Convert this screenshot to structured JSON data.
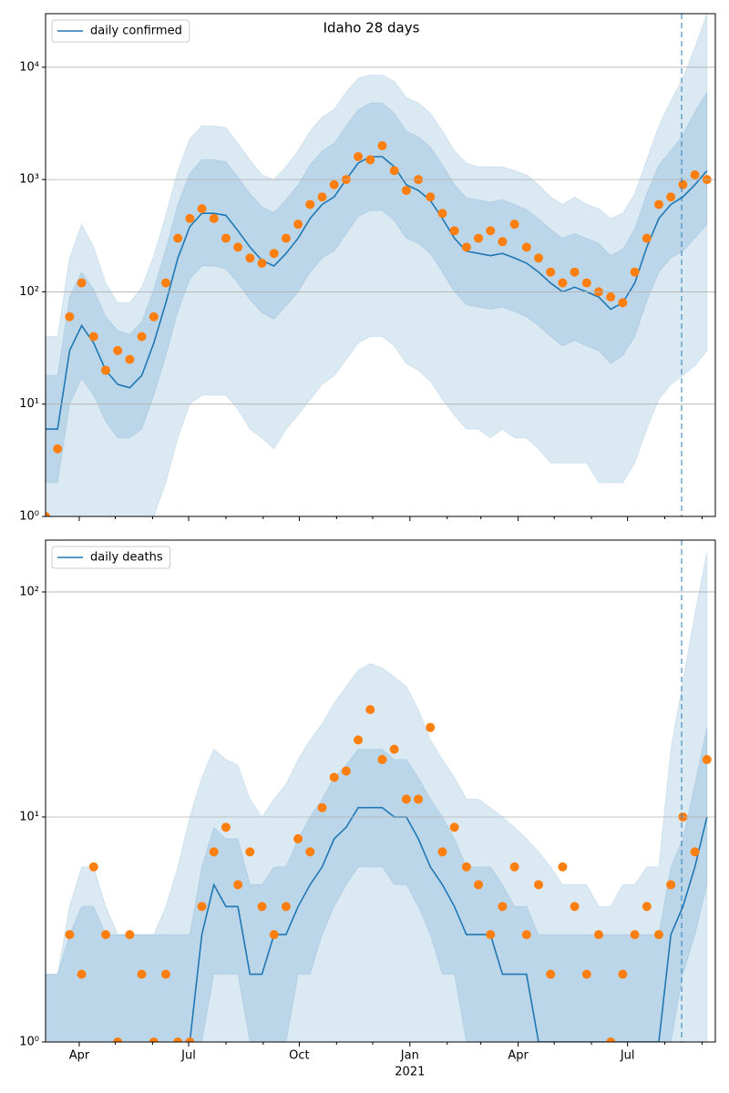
{
  "chart_data": [
    {
      "type": "line",
      "title": "Idaho 28 days",
      "x": [
        0,
        10,
        20,
        30,
        40,
        50,
        60,
        70,
        80,
        90,
        100,
        110,
        120,
        130,
        140,
        150,
        160,
        170,
        180,
        190,
        200,
        210,
        220,
        230,
        240,
        250,
        260,
        270,
        280,
        290,
        300,
        310,
        320,
        330,
        340,
        350,
        360,
        370,
        380,
        390,
        400,
        410,
        420,
        430,
        440,
        450,
        460,
        470,
        480,
        490,
        500,
        510,
        520,
        530,
        540,
        550
      ],
      "xlim": [
        0,
        557
      ],
      "xticks": [
        28,
        119,
        211,
        303,
        393,
        484
      ],
      "xminorticks": [
        58,
        89,
        150,
        181,
        242,
        272,
        334,
        362,
        423,
        454,
        515,
        546
      ],
      "log_y": true,
      "ylim": [
        1,
        30000
      ],
      "yticks": [
        {
          "value": 1,
          "label": "10⁰"
        },
        {
          "value": 10,
          "label": "10¹"
        },
        {
          "value": 100,
          "label": "10²"
        },
        {
          "value": 1000,
          "label": "10³"
        },
        {
          "value": 10000,
          "label": "10⁴"
        }
      ],
      "grid": true,
      "legend": "upper left",
      "vline": 529,
      "series": [
        {
          "name": "daily confirmed",
          "color": "#1f77b4",
          "values": [
            6,
            6,
            30,
            50,
            35,
            20,
            15,
            14,
            18,
            35,
            80,
            200,
            380,
            500,
            500,
            480,
            350,
            250,
            190,
            170,
            220,
            300,
            450,
            600,
            700,
            1000,
            1400,
            1600,
            1600,
            1300,
            900,
            800,
            650,
            450,
            300,
            230,
            220,
            210,
            220,
            200,
            180,
            150,
            120,
            100,
            110,
            100,
            90,
            70,
            80,
            120,
            250,
            450,
            600,
            700,
            900,
            1200
          ]
        }
      ],
      "observed": {
        "color": "#ff7f0e",
        "values": [
          1,
          4,
          60,
          120,
          40,
          20,
          30,
          25,
          40,
          60,
          120,
          300,
          450,
          550,
          450,
          300,
          250,
          200,
          180,
          220,
          300,
          400,
          600,
          700,
          900,
          1000,
          1600,
          1500,
          2000,
          1200,
          800,
          1000,
          700,
          500,
          350,
          250,
          300,
          350,
          280,
          400,
          250,
          200,
          150,
          120,
          150,
          120,
          100,
          90,
          80,
          150,
          300,
          600,
          700,
          900,
          1100,
          1000
        ]
      },
      "bands": [
        {
          "color": "#1f77b4",
          "lower": [
            1,
            1,
            1,
            1,
            1,
            1,
            1,
            1,
            1,
            1,
            2,
            5,
            10,
            12,
            12,
            12,
            9,
            6,
            5,
            4,
            6,
            8,
            11,
            15,
            18,
            25,
            35,
            40,
            40,
            33,
            23,
            20,
            16,
            11,
            8,
            6,
            6,
            5,
            6,
            5,
            5,
            4,
            3,
            3,
            3,
            3,
            2,
            2,
            2,
            3,
            6,
            11,
            15,
            18,
            22,
            30
          ],
          "upper": [
            40,
            40,
            200,
            400,
            250,
            120,
            80,
            80,
            110,
            210,
            480,
            1200,
            2300,
            3000,
            3000,
            2900,
            2100,
            1500,
            1100,
            1000,
            1300,
            1800,
            2700,
            3600,
            4200,
            6000,
            8000,
            8500,
            8500,
            7500,
            5400,
            4800,
            3900,
            2700,
            1800,
            1400,
            1300,
            1300,
            1300,
            1200,
            1100,
            900,
            700,
            600,
            700,
            600,
            550,
            450,
            500,
            750,
            1500,
            3000,
            5000,
            8000,
            15000,
            30000
          ]
        },
        {
          "color": "#1f77b4",
          "lower": [
            2,
            2,
            10,
            17,
            12,
            7,
            5,
            5,
            6,
            12,
            27,
            67,
            130,
            170,
            170,
            160,
            120,
            85,
            65,
            57,
            75,
            100,
            150,
            200,
            230,
            330,
            470,
            530,
            530,
            430,
            300,
            270,
            220,
            150,
            100,
            77,
            73,
            70,
            73,
            67,
            60,
            50,
            40,
            33,
            37,
            33,
            30,
            23,
            27,
            40,
            83,
            150,
            200,
            230,
            300,
            400
          ],
          "upper": [
            18,
            18,
            90,
            150,
            105,
            60,
            45,
            42,
            54,
            105,
            240,
            600,
            1140,
            1500,
            1500,
            1440,
            1050,
            750,
            570,
            510,
            660,
            900,
            1350,
            1800,
            2100,
            3000,
            4200,
            4800,
            4800,
            3900,
            2700,
            2400,
            1950,
            1350,
            900,
            690,
            660,
            630,
            660,
            600,
            540,
            450,
            360,
            300,
            330,
            300,
            270,
            210,
            240,
            360,
            750,
            1350,
            1800,
            2500,
            4000,
            6000
          ]
        }
      ]
    },
    {
      "type": "line",
      "x": [
        0,
        10,
        20,
        30,
        40,
        50,
        60,
        70,
        80,
        90,
        100,
        110,
        120,
        130,
        140,
        150,
        160,
        170,
        180,
        190,
        200,
        210,
        220,
        230,
        240,
        250,
        260,
        270,
        280,
        290,
        300,
        310,
        320,
        330,
        340,
        350,
        360,
        370,
        380,
        390,
        400,
        410,
        420,
        430,
        440,
        450,
        460,
        470,
        480,
        490,
        500,
        510,
        520,
        530,
        540,
        550
      ],
      "xlim": [
        0,
        557
      ],
      "xticks": [
        {
          "value": 28,
          "label": "Apr"
        },
        {
          "value": 119,
          "label": "Jul"
        },
        {
          "value": 211,
          "label": "Oct"
        },
        {
          "value": 303,
          "label": "Jan"
        },
        {
          "value": 393,
          "label": "Apr"
        },
        {
          "value": 484,
          "label": "Jul"
        }
      ],
      "xminorticks": [
        58,
        89,
        150,
        181,
        242,
        272,
        334,
        362,
        423,
        454,
        515,
        546
      ],
      "year_label": {
        "value": 303,
        "label": "2021"
      },
      "log_y": true,
      "ylim": [
        1,
        170
      ],
      "yticks": [
        {
          "value": 1,
          "label": "10⁰"
        },
        {
          "value": 10,
          "label": "10¹"
        },
        {
          "value": 100,
          "label": "10²"
        }
      ],
      "grid": true,
      "legend": "upper left",
      "vline": 529,
      "series": [
        {
          "name": "daily deaths",
          "color": "#1f77b4",
          "values": [
            null,
            null,
            null,
            null,
            null,
            null,
            null,
            null,
            null,
            null,
            null,
            null,
            1,
            3,
            5,
            4,
            4,
            2,
            2,
            3,
            3,
            4,
            5,
            6,
            8,
            9,
            11,
            11,
            11,
            10,
            10,
            8,
            6,
            5,
            4,
            3,
            3,
            3,
            2,
            2,
            2,
            1,
            1,
            1,
            1,
            1,
            1,
            1,
            1,
            1,
            1,
            1,
            3,
            4,
            6,
            10
          ]
        }
      ],
      "observed": {
        "color": "#ff7f0e",
        "values": [
          null,
          null,
          3,
          2,
          6,
          3,
          1,
          3,
          2,
          1,
          2,
          1,
          1,
          4,
          7,
          9,
          5,
          7,
          4,
          3,
          4,
          8,
          7,
          11,
          15,
          16,
          22,
          30,
          18,
          20,
          12,
          12,
          25,
          7,
          9,
          6,
          5,
          3,
          4,
          6,
          3,
          5,
          2,
          6,
          4,
          2,
          3,
          1,
          2,
          3,
          4,
          3,
          5,
          10,
          7,
          18
        ]
      },
      "bands": [
        {
          "color": "#1f77b4",
          "lower": [
            1,
            1,
            1,
            1,
            1,
            1,
            1,
            1,
            1,
            1,
            1,
            1,
            1,
            1,
            1,
            1,
            1,
            1,
            1,
            1,
            1,
            1,
            1,
            1,
            1,
            1,
            1,
            1,
            1,
            1,
            1,
            1,
            1,
            1,
            1,
            1,
            1,
            1,
            1,
            1,
            1,
            1,
            1,
            1,
            1,
            1,
            1,
            1,
            1,
            1,
            1,
            1,
            1,
            1,
            1,
            1
          ],
          "upper": [
            2,
            2,
            4,
            6,
            6,
            4,
            3,
            3,
            3,
            3,
            4,
            6,
            10,
            15,
            20,
            18,
            17,
            12,
            10,
            12,
            14,
            18,
            22,
            26,
            32,
            38,
            45,
            48,
            46,
            42,
            38,
            30,
            22,
            18,
            15,
            12,
            12,
            11,
            10,
            9,
            8,
            7,
            6,
            5,
            5,
            5,
            4,
            4,
            5,
            5,
            6,
            6,
            20,
            40,
            80,
            150
          ]
        },
        {
          "color": "#1f77b4",
          "lower": [
            1,
            1,
            1,
            1,
            1,
            1,
            1,
            1,
            1,
            1,
            1,
            1,
            1,
            1,
            2,
            2,
            2,
            1,
            1,
            1,
            1,
            2,
            2,
            3,
            4,
            5,
            6,
            6,
            6,
            5,
            5,
            4,
            3,
            2,
            2,
            1,
            1,
            1,
            1,
            1,
            1,
            1,
            1,
            1,
            1,
            1,
            1,
            1,
            1,
            1,
            1,
            1,
            1,
            2,
            3,
            5
          ],
          "upper": [
            2,
            2,
            3,
            4,
            4,
            3,
            3,
            3,
            3,
            3,
            3,
            3,
            3,
            6,
            9,
            8,
            8,
            5,
            5,
            6,
            6,
            8,
            10,
            12,
            15,
            17,
            20,
            20,
            20,
            18,
            18,
            15,
            12,
            10,
            8,
            6,
            6,
            6,
            5,
            4,
            4,
            3,
            3,
            3,
            3,
            3,
            3,
            3,
            3,
            3,
            3,
            3,
            6,
            8,
            14,
            25
          ]
        }
      ]
    }
  ]
}
